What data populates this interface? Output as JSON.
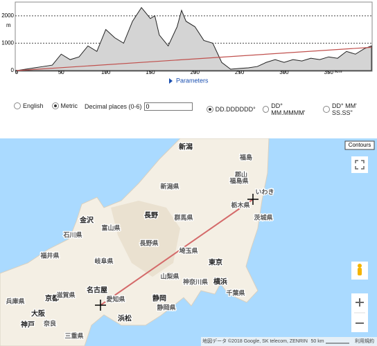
{
  "profile": {
    "type": "area",
    "y_unit": "m",
    "x_unit": "km",
    "x": [
      0,
      10,
      20,
      30,
      40,
      50,
      60,
      70,
      80,
      90,
      100,
      110,
      120,
      130,
      140,
      145,
      150,
      155,
      160,
      170,
      180,
      185,
      190,
      200,
      210,
      220,
      230,
      240,
      250,
      260,
      270,
      280,
      290,
      300,
      310,
      320,
      330,
      340,
      350,
      360,
      370,
      380,
      390,
      398
    ],
    "values": [
      0,
      50,
      100,
      150,
      200,
      600,
      400,
      500,
      900,
      700,
      1500,
      1200,
      1000,
      1800,
      2300,
      2100,
      1900,
      2000,
      1300,
      900,
      1600,
      2200,
      1800,
      1600,
      1100,
      1000,
      300,
      50,
      80,
      100,
      150,
      300,
      400,
      300,
      400,
      350,
      450,
      400,
      500,
      450,
      700,
      600,
      800,
      900
    ],
    "color": "#d4d4d4",
    "slope_line": {
      "x": [
        0,
        398
      ],
      "values": [
        0,
        850
      ],
      "color": "#c0504d"
    },
    "xlim": [
      0,
      398
    ],
    "ylim": [
      0,
      2450
    ],
    "xticks": [
      0,
      50,
      100,
      150,
      200,
      250,
      300,
      350
    ],
    "yticks": [
      0,
      1000,
      2000
    ],
    "grid": true
  },
  "parameters_link": "Parameters",
  "units": {
    "options": [
      "English",
      "Metric"
    ],
    "selected": 1
  },
  "decimal_places": {
    "label": "Decimal places (0-6)",
    "value": "0"
  },
  "coord_format": {
    "options": [
      "DD.DDDDDD°",
      "DD° MM.MMMM'",
      "DD° MM' SS.SS\""
    ],
    "selected": 0
  },
  "map": {
    "contours_button": "Contours",
    "labels": [
      "新潟",
      "福島",
      "郡山",
      "新潟県",
      "福島県",
      "いわき",
      "栃木県",
      "金沢",
      "富山県",
      "長野",
      "群馬県",
      "茨城県",
      "石川県",
      "長野県",
      "埼玉県",
      "福井県",
      "岐阜県",
      "東京",
      "山梨県",
      "神奈川県",
      "横浜",
      "名古屋",
      "愛知県",
      "京都",
      "滋賀県",
      "静岡",
      "千葉県",
      "兵庫県",
      "大阪",
      "静岡県",
      "浜松",
      "神戸",
      "奈良",
      "三重県"
    ],
    "attribution": "地図データ ©2018 Google, SK telecom, ZENRIN",
    "scale": "50 km",
    "terms": "利用規約"
  }
}
